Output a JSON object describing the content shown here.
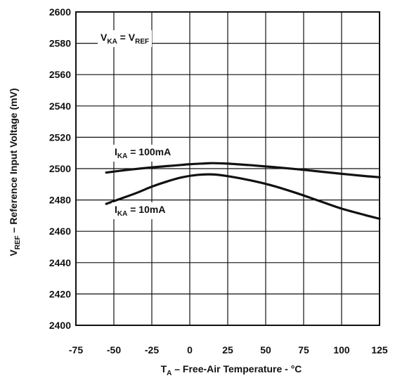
{
  "chart_data": {
    "type": "line",
    "xlabel": {
      "main": "T",
      "sub": "A",
      "rest": " – Free-Air Temperature - °C"
    },
    "ylabel": {
      "main": "V",
      "sub": "REF",
      "rest": " – Reference Input Voltage (mV)"
    },
    "xlim": [
      -75,
      125
    ],
    "ylim": [
      2400,
      2600
    ],
    "x_ticks": [
      -75,
      -50,
      -25,
      0,
      25,
      50,
      75,
      100,
      125
    ],
    "x_tick_labels": [
      "-75",
      "-50",
      "-25",
      "0",
      "25",
      "50",
      "75",
      "100",
      "125"
    ],
    "y_ticks": [
      2400,
      2420,
      2440,
      2460,
      2480,
      2500,
      2520,
      2540,
      2560,
      2580,
      2600
    ],
    "y_tick_labels": [
      "2400",
      "2420",
      "2440",
      "2460",
      "2480",
      "2500",
      "2520",
      "2540",
      "2560",
      "2580",
      "2600"
    ],
    "grid": true,
    "condition": {
      "a": "V",
      "a_sub": "KA",
      "eq": " = ",
      "b": "V",
      "b_sub": "REF"
    },
    "series": [
      {
        "name": {
          "main": "I",
          "sub": "KA",
          "rest": " = 100mA"
        },
        "x": [
          -55,
          -40,
          -25,
          -10,
          0,
          10,
          15,
          25,
          40,
          55,
          70,
          85,
          100,
          115,
          125
        ],
        "y": [
          2497.5,
          2499.3,
          2500.8,
          2502.0,
          2502.8,
          2503.3,
          2503.5,
          2503.2,
          2502.2,
          2501.0,
          2499.7,
          2498.2,
          2496.7,
          2495.3,
          2494.5
        ]
      },
      {
        "name": {
          "main": "I",
          "sub": "KA",
          "rest": " = 10mA"
        },
        "x": [
          -55,
          -45,
          -35,
          -25,
          -15,
          -5,
          5,
          15,
          25,
          40,
          55,
          70,
          85,
          100,
          115,
          125
        ],
        "y": [
          2477.5,
          2481.0,
          2484.5,
          2488.5,
          2491.8,
          2494.5,
          2496.0,
          2496.3,
          2495.2,
          2492.5,
          2489.0,
          2484.5,
          2479.5,
          2474.5,
          2470.5,
          2468.0
        ]
      }
    ]
  }
}
